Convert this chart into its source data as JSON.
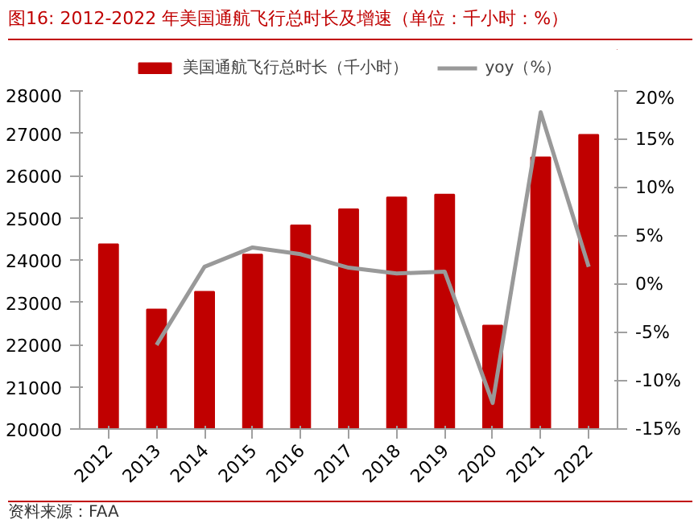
{
  "chart_data": {
    "type": "bar",
    "title": "图16:  2012-2022 年美国通航飞行总时长及增速（单位：千小时：%）",
    "categories": [
      "2012",
      "2013",
      "2014",
      "2015",
      "2016",
      "2017",
      "2018",
      "2019",
      "2020",
      "2021",
      "2022"
    ],
    "series": [
      {
        "name": "美国通航飞行总时长（千小时）",
        "color": "#c00000",
        "values": [
          24370,
          22830,
          23250,
          24130,
          24820,
          25200,
          25480,
          25550,
          22450,
          26430,
          26960
        ]
      },
      {
        "name": "yoy（%）",
        "type": "line",
        "axis": "y2",
        "color": "#999999",
        "values": [
          null,
          -6.3,
          1.8,
          3.8,
          3.1,
          1.7,
          1.1,
          1.3,
          -12.3,
          17.8,
          1.8
        ]
      }
    ],
    "ylim": [
      20000,
      28000
    ],
    "yticks": [
      20000,
      21000,
      22000,
      23000,
      24000,
      25000,
      26000,
      27000,
      28000
    ],
    "y2lim": [
      -15,
      20
    ],
    "y2ticks": [
      {
        "value": -15,
        "label": "-15%"
      },
      {
        "value": -10,
        "label": "-10%"
      },
      {
        "value": -5,
        "label": "-5%"
      },
      {
        "value": 0,
        "label": "0%"
      },
      {
        "value": 5,
        "label": "5%"
      },
      {
        "value": 10,
        "label": "10%"
      },
      {
        "value": 15,
        "label": "15%"
      },
      {
        "value": 20,
        "label": "20%"
      }
    ],
    "grid": false,
    "legend": "top",
    "annotations": [
      "资料来源：FAA"
    ]
  }
}
